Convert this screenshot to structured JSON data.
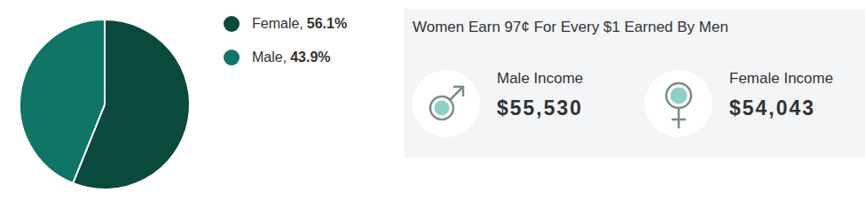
{
  "chart_data": {
    "type": "pie",
    "categories": [
      "Female",
      "Male"
    ],
    "values": [
      56.1,
      43.9
    ],
    "value_labels": [
      "56.1%",
      "43.9%"
    ],
    "colors": [
      "#0a4a3d",
      "#0f7566"
    ],
    "legend": "right"
  },
  "panel": {
    "title": "Women Earn 97¢ For Every $1 Earned By Men",
    "items": [
      {
        "label": "Male Income",
        "value": "$55,530",
        "symbol": "male"
      },
      {
        "label": "Female Income",
        "value": "$54,043",
        "symbol": "female"
      }
    ]
  }
}
